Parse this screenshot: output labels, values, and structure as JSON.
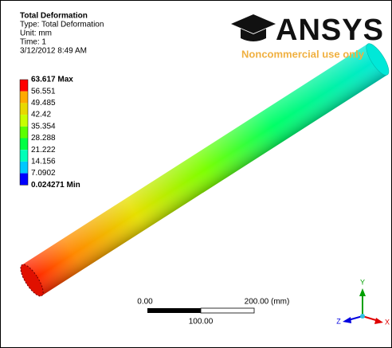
{
  "header": {
    "title": "Total Deformation",
    "lines": [
      "Type: Total Deformation",
      "Unit: mm",
      "Time: 1",
      "3/12/2012 8:49 AM"
    ]
  },
  "legend": {
    "labels": [
      "63.617 Max",
      "56.551",
      "49.485",
      "42.42",
      "35.354",
      "28.288",
      "21.222",
      "14.156",
      "7.0902",
      "0.024271 Min"
    ],
    "colors": [
      "#ff0000",
      "#ffaa00",
      "#e8d800",
      "#c8ff00",
      "#5cff00",
      "#00ff44",
      "#00ffb8",
      "#00c8ff",
      "#0000ff"
    ]
  },
  "logo": {
    "brand": "ANSYS",
    "note": "Noncommercial use only"
  },
  "scale_bar": {
    "start": "0.00",
    "end": "200.00 (mm)",
    "middle": "100.00"
  },
  "triad": {
    "y": "Y",
    "x": "X",
    "z": "Z"
  }
}
